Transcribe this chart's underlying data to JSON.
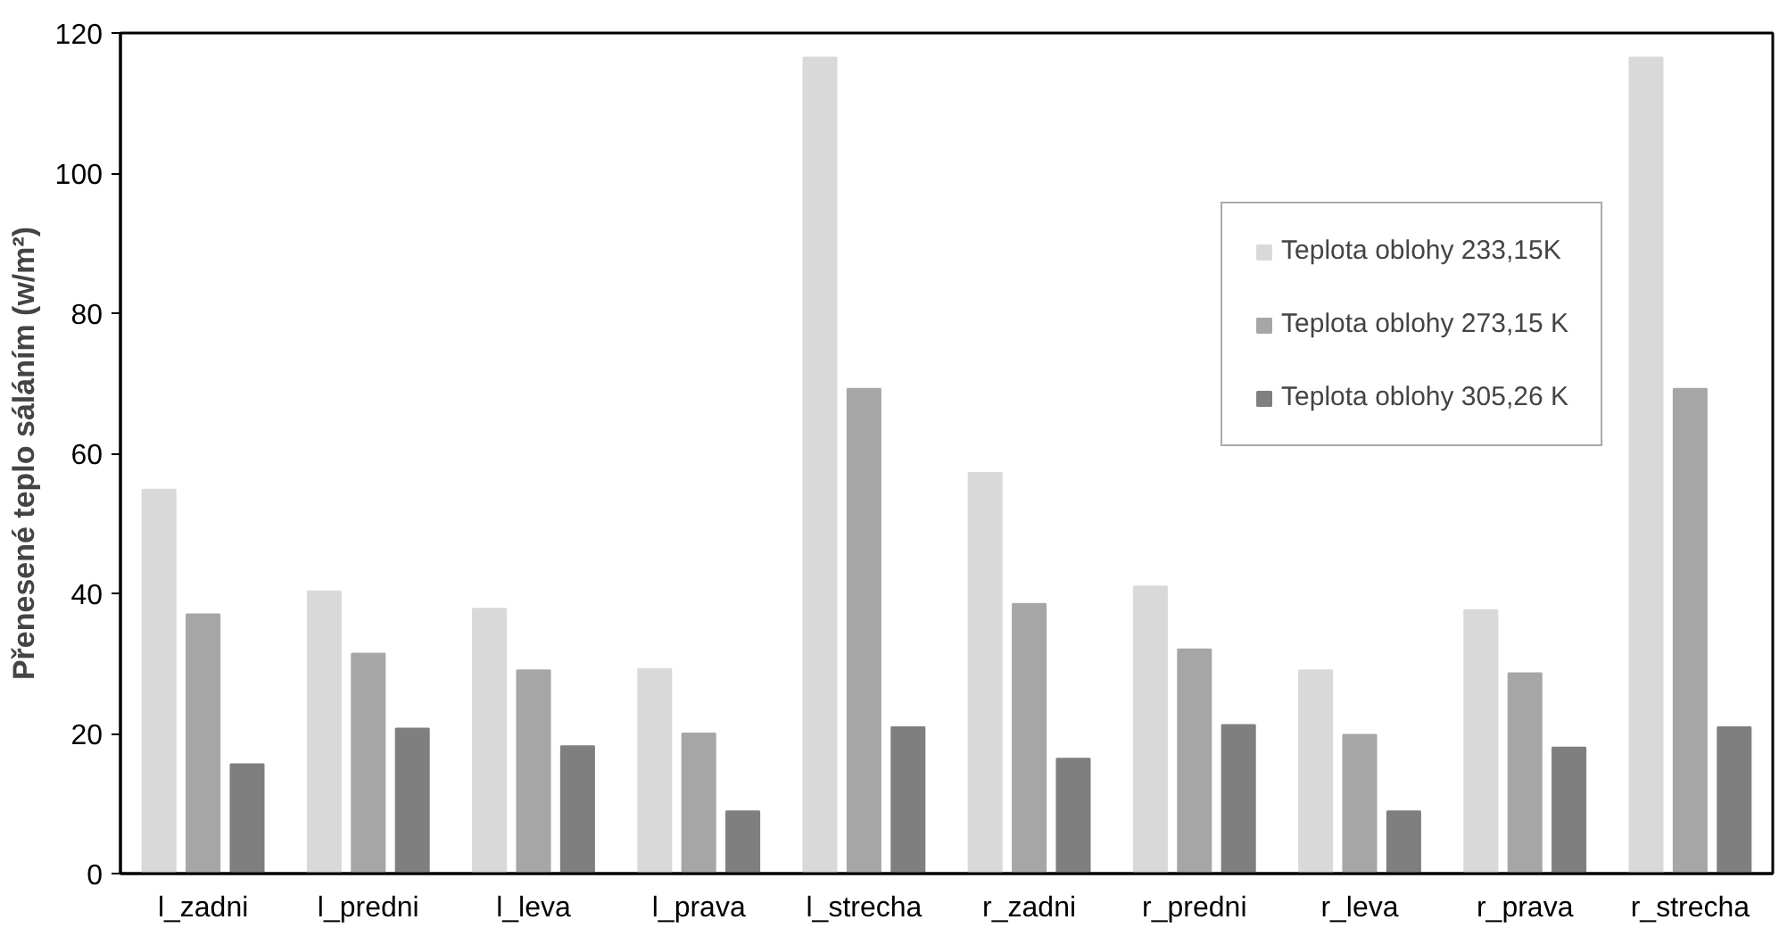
{
  "chart_data": {
    "type": "bar",
    "ylabel": "Přenesené teplo sáláním (w/m²)",
    "categories": [
      "l_zadni",
      "l_predni",
      "l_leva",
      "l_prava",
      "l_strecha",
      "r_zadni",
      "r_predni",
      "r_leva",
      "r_prava",
      "r_strecha"
    ],
    "series": [
      {
        "name": "Teplota oblohy 233,15K",
        "color": "#d9d9d9",
        "values": [
          54.8,
          40.3,
          37.8,
          29.2,
          116.5,
          57.2,
          41,
          29,
          37.6,
          116.5
        ]
      },
      {
        "name": "Teplota oblohy 273,15 K",
        "color": "#a6a6a6",
        "values": [
          37,
          31.4,
          29,
          20,
          69.2,
          38.5,
          32,
          19.8,
          28.6,
          69.2
        ]
      },
      {
        "name": "Teplota oblohy 305,26 K",
        "color": "#7f7f7f",
        "values": [
          15.6,
          20.7,
          18.2,
          8.9,
          20.9,
          16.4,
          21.2,
          8.9,
          18,
          20.9
        ]
      }
    ],
    "ylim": [
      0,
      120
    ],
    "yticks": [
      0,
      20,
      40,
      60,
      80,
      100,
      120
    ],
    "grid": false,
    "legend": "top right"
  }
}
